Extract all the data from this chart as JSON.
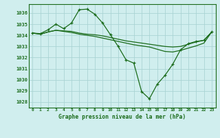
{
  "title": "Graphe pression niveau de la mer (hPa)",
  "background_color": "#d0eeee",
  "grid_color": "#aad4d4",
  "line_color": "#1a6b1a",
  "x_ticks": [
    0,
    1,
    2,
    3,
    4,
    5,
    6,
    7,
    8,
    9,
    10,
    11,
    12,
    13,
    14,
    15,
    16,
    17,
    18,
    19,
    20,
    21,
    22,
    23
  ],
  "ylim": [
    1027.5,
    1036.8
  ],
  "yticks": [
    1028,
    1029,
    1030,
    1031,
    1032,
    1033,
    1034,
    1035,
    1036
  ],
  "series1": [
    1034.2,
    1034.15,
    1034.5,
    1035.0,
    1034.6,
    1035.1,
    1036.3,
    1036.35,
    1035.9,
    1035.1,
    1034.05,
    1033.0,
    1031.8,
    1031.5,
    1028.95,
    1028.3,
    1029.6,
    1030.4,
    1031.4,
    1032.7,
    1033.25,
    1033.45,
    1033.55,
    1034.3
  ],
  "series2": [
    1034.2,
    1034.1,
    1034.3,
    1034.45,
    1034.4,
    1034.35,
    1034.2,
    1034.1,
    1034.05,
    1033.95,
    1033.8,
    1033.65,
    1033.5,
    1033.4,
    1033.3,
    1033.2,
    1033.1,
    1033.0,
    1032.95,
    1033.0,
    1033.2,
    1033.4,
    1033.55,
    1034.3
  ],
  "series3": [
    1034.2,
    1034.1,
    1034.3,
    1034.45,
    1034.35,
    1034.25,
    1034.1,
    1034.0,
    1033.9,
    1033.75,
    1033.6,
    1033.45,
    1033.3,
    1033.15,
    1033.05,
    1032.95,
    1032.75,
    1032.55,
    1032.5,
    1032.65,
    1032.85,
    1033.05,
    1033.3,
    1034.3
  ]
}
